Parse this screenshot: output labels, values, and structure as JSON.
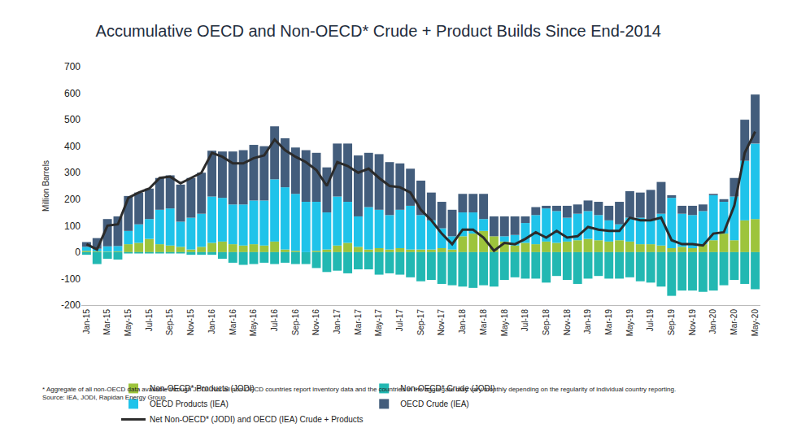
{
  "chart_data": {
    "type": "bar",
    "title": "Accumulative OECD and Non-OECD* Crude + Product Builds Since End-2014",
    "y_label": "Million Barrels",
    "stacked": true,
    "grid": false,
    "legend": "bottom",
    "ylim": [
      -200,
      700
    ],
    "yticks": [
      -200,
      -100,
      0,
      100,
      200,
      300,
      400,
      500,
      600,
      700
    ],
    "categories": [
      "Jan-15",
      null,
      "Mar-15",
      null,
      "May-15",
      null,
      "Jul-15",
      null,
      "Sep-15",
      null,
      "Nov-15",
      null,
      "Jan-16",
      null,
      "Mar-16",
      null,
      "May-16",
      null,
      "Jul-16",
      null,
      "Sep-16",
      null,
      "Nov-16",
      null,
      "Jan-17",
      null,
      "Mar-17",
      null,
      "May-17",
      null,
      "Jul-17",
      null,
      "Sep-17",
      null,
      "Nov-17",
      null,
      "Jan-18",
      null,
      "Mar-18",
      null,
      "May-18",
      null,
      "Jul-18",
      null,
      "Sep-18",
      null,
      "Nov-18",
      null,
      "Jan-19",
      null,
      "Mar-19",
      null,
      "May-19",
      null,
      "Jul-19",
      null,
      "Sep-19",
      null,
      "Nov-19",
      null,
      "Jan-20",
      null,
      "Mar-20",
      null,
      "May-20"
    ],
    "series": [
      {
        "name": "Non-OECD* Products (JODI)",
        "type": "bar",
        "color": "#9dc43c",
        "values": [
          5,
          3,
          2,
          3,
          30,
          35,
          50,
          30,
          25,
          20,
          10,
          20,
          35,
          40,
          30,
          25,
          30,
          25,
          40,
          10,
          5,
          0,
          5,
          10,
          25,
          35,
          20,
          10,
          15,
          10,
          15,
          10,
          10,
          10,
          15,
          10,
          60,
          70,
          80,
          60,
          40,
          25,
          35,
          30,
          40,
          35,
          40,
          45,
          50,
          45,
          40,
          45,
          40,
          30,
          30,
          25,
          15,
          20,
          15,
          30,
          45,
          70,
          45,
          120,
          125
        ]
      },
      {
        "name": "Non-OECD* Crude (JODI)",
        "type": "bar",
        "color": "#22b8b2",
        "values": [
          -10,
          -45,
          -25,
          -28,
          -5,
          -5,
          -5,
          -5,
          -5,
          -5,
          -10,
          -10,
          -10,
          -25,
          -40,
          -48,
          -45,
          -40,
          -45,
          -40,
          -45,
          -45,
          -60,
          -75,
          -70,
          -80,
          -65,
          -65,
          -85,
          -80,
          -85,
          -95,
          -110,
          -105,
          -120,
          -125,
          -130,
          -135,
          -125,
          -130,
          -105,
          -95,
          -100,
          -100,
          -115,
          -90,
          -105,
          -120,
          -100,
          -90,
          -100,
          -100,
          -95,
          -110,
          -115,
          -130,
          -165,
          -145,
          -145,
          -150,
          -145,
          -125,
          -105,
          -120,
          -140
        ]
      },
      {
        "name": "OECD Products (IEA)",
        "type": "bar",
        "color": "#1fc3ea",
        "values": [
          15,
          10,
          20,
          20,
          50,
          70,
          75,
          130,
          140,
          95,
          120,
          125,
          175,
          165,
          150,
          155,
          165,
          170,
          235,
          235,
          215,
          190,
          185,
          140,
          185,
          155,
          115,
          160,
          145,
          130,
          145,
          165,
          130,
          110,
          75,
          50,
          90,
          80,
          45,
          0,
          20,
          40,
          75,
          110,
          125,
          120,
          90,
          100,
          105,
          95,
          80,
          60,
          90,
          100,
          95,
          120,
          190,
          125,
          125,
          125,
          170,
          120,
          165,
          225,
          285
        ]
      },
      {
        "name": "OECD Crude (IEA)",
        "type": "bar",
        "color": "#435d7c",
        "values": [
          18,
          40,
          103,
          112,
          132,
          120,
          115,
          120,
          125,
          140,
          150,
          155,
          173,
          175,
          200,
          205,
          210,
          205,
          200,
          185,
          175,
          195,
          185,
          170,
          200,
          220,
          230,
          205,
          210,
          200,
          175,
          140,
          130,
          105,
          100,
          100,
          70,
          70,
          95,
          75,
          75,
          70,
          25,
          30,
          10,
          20,
          45,
          35,
          40,
          50,
          55,
          85,
          100,
          95,
          110,
          120,
          10,
          30,
          35,
          25,
          5,
          10,
          70,
          155,
          185
        ]
      },
      {
        "name": "Net Non-OECD* (JODI) and OECD (IEA) Crude + Products",
        "type": "line",
        "color": "#2b2b2b",
        "line_style": "solid",
        "values": [
          30,
          10,
          100,
          105,
          205,
          225,
          240,
          280,
          285,
          260,
          280,
          300,
          375,
          360,
          335,
          335,
          355,
          365,
          425,
          385,
          360,
          340,
          310,
          250,
          340,
          325,
          300,
          315,
          280,
          250,
          245,
          225,
          160,
          120,
          70,
          30,
          85,
          85,
          55,
          5,
          35,
          30,
          50,
          75,
          55,
          80,
          55,
          60,
          95,
          85,
          80,
          80,
          130,
          120,
          120,
          130,
          45,
          30,
          30,
          25,
          70,
          75,
          175,
          375,
          455
        ]
      }
    ],
    "annotations": [
      "* Aggregate of all non-OECD data available through JODI. Not all non-OECD countries report inventory data and the countries in the aggregate may vary monthly depending on the regularity of individual country reporting.",
      "Source: IEA, JODI, Rapidan Energy Group"
    ]
  }
}
